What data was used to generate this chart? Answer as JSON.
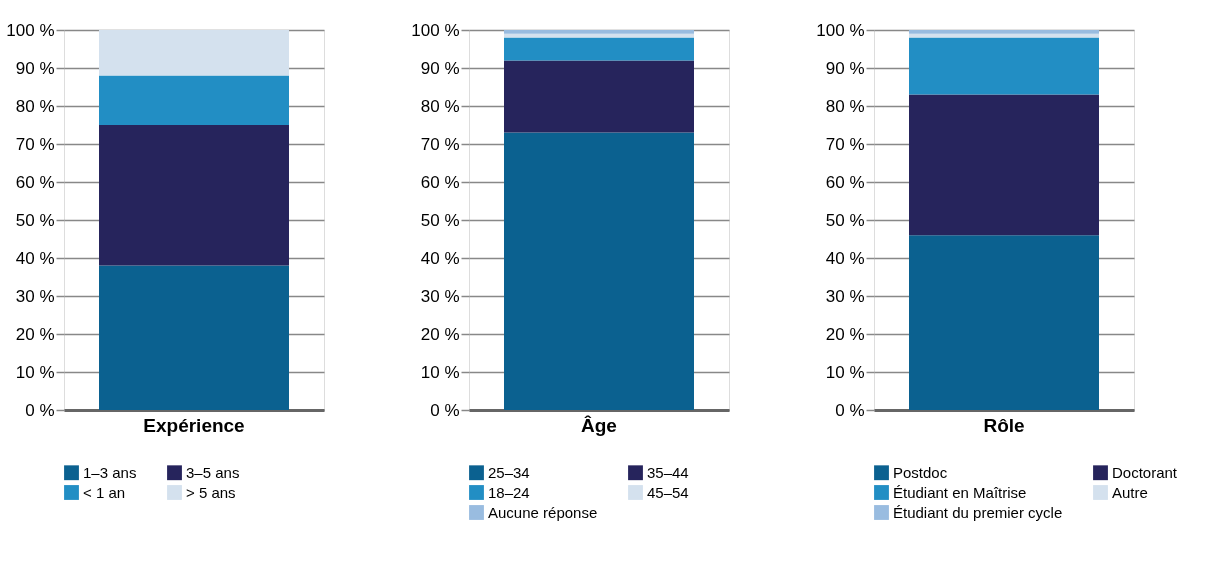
{
  "chart_data": [
    {
      "type": "bar",
      "stacked": true,
      "categories": [
        "Expérience"
      ],
      "ylim": [
        0,
        100
      ],
      "yticks": [
        {
          "value": 0,
          "label": "0 %"
        },
        {
          "value": 10,
          "label": "10 %"
        },
        {
          "value": 20,
          "label": "20 %"
        },
        {
          "value": 30,
          "label": "30 %"
        },
        {
          "value": 40,
          "label": "40 %"
        },
        {
          "value": 50,
          "label": "50 %"
        },
        {
          "value": 60,
          "label": "60 %"
        },
        {
          "value": 70,
          "label": "70 %"
        },
        {
          "value": 80,
          "label": "80 %"
        },
        {
          "value": 90,
          "label": "90 %"
        },
        {
          "value": 100,
          "label": "100 %"
        }
      ],
      "grid": "y",
      "legend": "bottom",
      "series": [
        {
          "name": "1–3 ans",
          "color": "#0b6190",
          "values": [
            38
          ]
        },
        {
          "name": "3–5 ans",
          "color": "#26245c",
          "values": [
            37
          ]
        },
        {
          "name": "< 1 an",
          "color": "#228ec4",
          "values": [
            13
          ]
        },
        {
          "name": "> 5 ans",
          "color": "#d4e1ee",
          "values": [
            12
          ]
        }
      ]
    },
    {
      "type": "bar",
      "stacked": true,
      "categories": [
        "Âge"
      ],
      "ylim": [
        0,
        100
      ],
      "yticks": [
        {
          "value": 0,
          "label": "0 %"
        },
        {
          "value": 10,
          "label": "10 %"
        },
        {
          "value": 20,
          "label": "20 %"
        },
        {
          "value": 30,
          "label": "30 %"
        },
        {
          "value": 40,
          "label": "40 %"
        },
        {
          "value": 50,
          "label": "50 %"
        },
        {
          "value": 60,
          "label": "60 %"
        },
        {
          "value": 70,
          "label": "70 %"
        },
        {
          "value": 80,
          "label": "80 %"
        },
        {
          "value": 90,
          "label": "90 %"
        },
        {
          "value": 100,
          "label": "100 %"
        }
      ],
      "grid": "y",
      "legend": "bottom",
      "series": [
        {
          "name": "25–34",
          "color": "#0b6190",
          "values": [
            73
          ]
        },
        {
          "name": "35–44",
          "color": "#26245c",
          "values": [
            19
          ]
        },
        {
          "name": "18–24",
          "color": "#228ec4",
          "values": [
            6
          ]
        },
        {
          "name": "45–54",
          "color": "#d4e1ee",
          "values": [
            1
          ]
        },
        {
          "name": "Aucune réponse",
          "color": "#99bce0",
          "values": [
            1
          ]
        }
      ]
    },
    {
      "type": "bar",
      "stacked": true,
      "categories": [
        "Rôle"
      ],
      "ylim": [
        0,
        100
      ],
      "yticks": [
        {
          "value": 0,
          "label": "0 %"
        },
        {
          "value": 10,
          "label": "10 %"
        },
        {
          "value": 20,
          "label": "20 %"
        },
        {
          "value": 30,
          "label": "30 %"
        },
        {
          "value": 40,
          "label": "40 %"
        },
        {
          "value": 50,
          "label": "50 %"
        },
        {
          "value": 60,
          "label": "60 %"
        },
        {
          "value": 70,
          "label": "70 %"
        },
        {
          "value": 80,
          "label": "80 %"
        },
        {
          "value": 90,
          "label": "90 %"
        },
        {
          "value": 100,
          "label": "100 %"
        }
      ],
      "grid": "y",
      "legend": "bottom",
      "series": [
        {
          "name": "Postdoc",
          "color": "#0b6190",
          "values": [
            46
          ]
        },
        {
          "name": "Doctorant",
          "color": "#26245c",
          "values": [
            37
          ]
        },
        {
          "name": "Étudiant en Maîtrise",
          "color": "#228ec4",
          "values": [
            15
          ]
        },
        {
          "name": "Autre",
          "color": "#d4e1ee",
          "values": [
            1
          ]
        },
        {
          "name": "Étudiant du premier cycle",
          "color": "#99bce0",
          "values": [
            1
          ]
        }
      ]
    }
  ]
}
